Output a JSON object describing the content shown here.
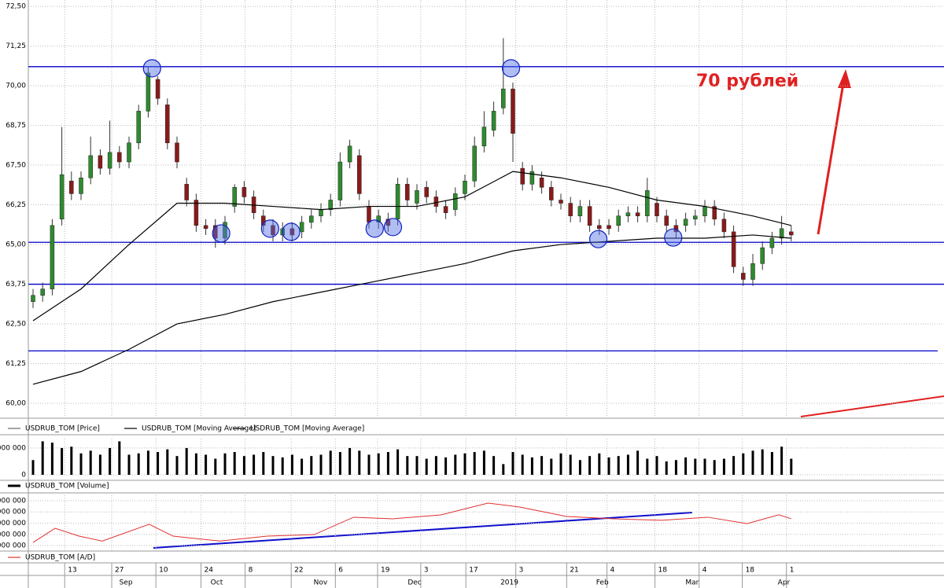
{
  "chart_data": [
    {
      "type": "candlestick",
      "series": [
        {
          "name": "USDRUB_TOM [Price]",
          "color": "#666666",
          "open": [
            63.2,
            63.4,
            63.6,
            65.8,
            67.0,
            66.6,
            67.1,
            67.8,
            67.4,
            67.9,
            67.6,
            68.2,
            69.2,
            70.2,
            69.4,
            68.2,
            66.9,
            66.4,
            65.6,
            65.6,
            65.2,
            66.2,
            66.8,
            66.5,
            65.9,
            65.6,
            65.3,
            65.5,
            65.4,
            65.7,
            65.9,
            66.1,
            66.4,
            67.6,
            67.8,
            66.2,
            65.7,
            65.8,
            65.8,
            66.9,
            66.3,
            66.8,
            66.5,
            66.2,
            66.1,
            66.6,
            67.0,
            68.1,
            68.6,
            69.3,
            69.9,
            67.4,
            66.9,
            67.1,
            66.8,
            66.4,
            66.3,
            65.9,
            66.2,
            65.6,
            65.6,
            65.6,
            65.9,
            66.0,
            65.9,
            66.3,
            65.9,
            65.6,
            65.6,
            65.8,
            65.9,
            66.2,
            65.8,
            65.4,
            64.1,
            63.9,
            64.4,
            64.9,
            65.2,
            65.4
          ],
          "high": [
            63.6,
            63.8,
            65.8,
            68.7,
            67.3,
            67.3,
            68.4,
            68.0,
            68.9,
            68.1,
            68.4,
            69.4,
            70.6,
            70.3,
            69.6,
            68.4,
            67.1,
            66.6,
            65.8,
            65.8,
            65.9,
            66.9,
            67.0,
            66.7,
            66.1,
            65.8,
            65.7,
            65.7,
            65.9,
            66.1,
            66.3,
            66.6,
            67.9,
            68.3,
            68.0,
            66.4,
            66.1,
            66.0,
            67.1,
            67.1,
            66.9,
            67.0,
            66.7,
            66.4,
            66.8,
            67.2,
            68.4,
            69.2,
            69.5,
            71.5,
            70.1,
            67.6,
            67.5,
            67.3,
            67.0,
            66.6,
            66.5,
            66.4,
            66.4,
            65.8,
            65.8,
            66.1,
            66.2,
            66.2,
            67.1,
            66.5,
            66.1,
            65.8,
            66.0,
            66.1,
            66.4,
            66.4,
            66.0,
            65.6,
            64.3,
            64.7,
            65.1,
            65.4,
            65.9,
            65.6
          ],
          "low": [
            63.0,
            63.2,
            63.4,
            65.6,
            66.4,
            66.4,
            66.9,
            67.2,
            67.2,
            67.4,
            67.4,
            68.0,
            69.0,
            69.4,
            68.0,
            67.4,
            66.2,
            65.4,
            65.3,
            64.9,
            65.0,
            66.0,
            66.3,
            65.8,
            65.4,
            65.1,
            65.1,
            65.1,
            65.2,
            65.5,
            65.7,
            65.9,
            66.2,
            67.4,
            66.4,
            65.5,
            65.5,
            65.4,
            65.6,
            66.2,
            66.1,
            66.3,
            66.0,
            65.8,
            65.9,
            66.4,
            66.8,
            67.9,
            68.4,
            69.1,
            67.6,
            66.7,
            66.7,
            66.6,
            66.2,
            66.1,
            65.7,
            65.7,
            65.4,
            65.3,
            65.3,
            65.4,
            65.7,
            65.7,
            65.7,
            65.7,
            65.4,
            65.2,
            65.4,
            65.6,
            65.7,
            65.6,
            65.2,
            64.1,
            63.7,
            63.7,
            64.2,
            64.7,
            65.0,
            65.1
          ],
          "close": [
            63.4,
            63.6,
            65.6,
            67.2,
            66.6,
            67.1,
            67.8,
            67.4,
            67.9,
            67.6,
            68.2,
            69.2,
            70.4,
            69.6,
            68.2,
            67.6,
            66.4,
            65.6,
            65.5,
            65.2,
            65.7,
            66.8,
            66.5,
            66.0,
            65.6,
            65.3,
            65.5,
            65.3,
            65.7,
            65.9,
            66.1,
            66.4,
            67.6,
            68.1,
            66.6,
            65.7,
            65.9,
            65.6,
            66.9,
            66.4,
            66.7,
            66.5,
            66.2,
            66.0,
            66.6,
            67.0,
            68.1,
            68.7,
            69.2,
            69.9,
            68.5,
            66.9,
            67.3,
            66.8,
            66.4,
            66.3,
            65.9,
            66.2,
            65.6,
            65.5,
            65.5,
            65.9,
            66.0,
            65.9,
            66.7,
            65.9,
            65.6,
            65.4,
            65.8,
            65.9,
            66.2,
            65.8,
            65.4,
            64.3,
            63.9,
            64.4,
            64.9,
            65.2,
            65.5,
            65.3
          ]
        },
        {
          "name": "USDRUB_TOM [Moving Average]",
          "color": "#000000",
          "x": [
            0,
            5,
            10,
            15,
            20,
            25,
            30,
            35,
            40,
            45,
            50,
            55,
            60,
            65,
            70,
            75,
            79
          ],
          "values": [
            62.6,
            63.6,
            65.0,
            66.3,
            66.3,
            66.2,
            66.1,
            66.2,
            66.2,
            66.5,
            67.3,
            67.1,
            66.8,
            66.4,
            66.2,
            65.9,
            65.6
          ]
        },
        {
          "name": "USDRUB_TOM [Moving Average]",
          "color": "#000000",
          "x": [
            0,
            5,
            10,
            15,
            20,
            25,
            30,
            35,
            40,
            45,
            50,
            55,
            60,
            65,
            70,
            75,
            79
          ],
          "values": [
            60.6,
            61.0,
            61.7,
            62.5,
            62.8,
            63.2,
            63.5,
            63.8,
            64.1,
            64.4,
            64.8,
            65.0,
            65.1,
            65.2,
            65.2,
            65.3,
            65.2
          ]
        }
      ],
      "up_color": "#2e8b2e",
      "down_color": "#8b1a1a",
      "levels": [
        70.6,
        65.07,
        63.75,
        61.65
      ],
      "level_color": "#0000cc",
      "highlights": [
        {
          "x": 12.4,
          "y": 70.55
        },
        {
          "x": 19.6,
          "y": 65.35
        },
        {
          "x": 24.7,
          "y": 65.5
        },
        {
          "x": 26.9,
          "y": 65.4
        },
        {
          "x": 35.6,
          "y": 65.5
        },
        {
          "x": 37.5,
          "y": 65.55
        },
        {
          "x": 49.8,
          "y": 70.55
        },
        {
          "x": 58.9,
          "y": 65.17
        },
        {
          "x": 66.7,
          "y": 65.22
        }
      ],
      "annotation": "70 рублей",
      "ylim": [
        59.58,
        72.7
      ],
      "yticks": [
        {
          "value": 72.5,
          "label": "72,50"
        },
        {
          "value": 71.25,
          "label": "71,25"
        },
        {
          "value": 70,
          "label": "70,00"
        },
        {
          "value": 68.75,
          "label": "68,75"
        },
        {
          "value": 67.5,
          "label": "67,50"
        },
        {
          "value": 66.25,
          "label": "66,25"
        },
        {
          "value": 65,
          "label": "65,00"
        },
        {
          "value": 63.75,
          "label": "63,75"
        },
        {
          "value": 62.5,
          "label": "62,50"
        },
        {
          "value": 61.25,
          "label": "61,25"
        },
        {
          "value": 60,
          "label": "60,00"
        }
      ],
      "grid": true
    },
    {
      "type": "bar",
      "series": [
        {
          "name": "USDRUB_TOM [Volume]",
          "color": "#000000",
          "values": [
            0.55,
            1.25,
            1.2,
            1.0,
            1.05,
            0.8,
            0.9,
            0.75,
            1.0,
            1.25,
            0.75,
            0.8,
            0.9,
            0.85,
            0.95,
            0.7,
            1.0,
            0.8,
            0.75,
            0.6,
            0.8,
            0.85,
            0.7,
            0.75,
            0.85,
            0.7,
            0.65,
            0.75,
            0.6,
            0.7,
            0.75,
            0.9,
            0.85,
            1.0,
            0.9,
            0.75,
            0.8,
            0.85,
            0.95,
            0.7,
            0.7,
            0.6,
            0.7,
            0.65,
            0.75,
            0.8,
            0.85,
            0.9,
            0.7,
            0.4,
            0.85,
            0.75,
            0.65,
            0.7,
            0.6,
            0.8,
            0.75,
            0.55,
            0.7,
            0.8,
            0.65,
            0.7,
            0.75,
            0.9,
            0.6,
            0.7,
            0.5,
            0.55,
            0.65,
            0.6,
            0.6,
            0.55,
            0.6,
            0.7,
            0.8,
            0.9,
            0.95,
            0.85,
            1.05,
            0.6
          ]
        }
      ],
      "ylim": [
        0,
        1.35
      ],
      "yticks": [
        {
          "value": 1,
          "label": "000 000"
        },
        0
      ]
    },
    {
      "type": "line",
      "series": [
        {
          "name": "USDRUB_TOM [A/D]",
          "color": "#e03030",
          "x": [
            0,
            2.3,
            4.8,
            7.2,
            12.1,
            14.6,
            19.5,
            24.4,
            29.3,
            33.4,
            37.5,
            42.5,
            47.4,
            50.7,
            55.6,
            60.5,
            65.5,
            70.3,
            74.4,
            77.7,
            79
          ],
          "values": [
            1.28,
            2.54,
            1.84,
            1.4,
            2.9,
            1.84,
            1.4,
            1.84,
            1.98,
            3.53,
            3.39,
            3.74,
            4.79,
            4.44,
            3.6,
            3.39,
            3.25,
            3.53,
            2.96,
            3.74,
            3.39
          ]
        }
      ],
      "ylim": [
        0.58,
        5.49
      ],
      "yticks": [
        {
          "value": 5,
          "label": "000 000"
        },
        {
          "value": 4,
          "label": "000 000"
        },
        {
          "value": 3,
          "label": "000 000"
        },
        {
          "value": 2,
          "label": "000 000"
        },
        {
          "value": 1,
          "label": "000 000"
        }
      ],
      "xticks": [
        {
          "value": 3.3,
          "label": "13"
        },
        {
          "value": 8.2,
          "label": "27"
        },
        {
          "value": 12.8,
          "label": "10"
        },
        {
          "value": 17.5,
          "label": "24"
        },
        {
          "value": 22.1,
          "label": "8"
        },
        {
          "value": 26.9,
          "label": "22"
        },
        {
          "value": 31.5,
          "label": "6"
        },
        {
          "value": 35.9,
          "label": "19"
        },
        {
          "value": 40.4,
          "label": "3"
        },
        {
          "value": 45.1,
          "label": "17"
        },
        {
          "value": 50.3,
          "label": "3"
        },
        {
          "value": 55.6,
          "label": "21"
        },
        {
          "value": 59.8,
          "label": "4"
        },
        {
          "value": 64.8,
          "label": "18"
        },
        {
          "value": 69.4,
          "label": "4"
        },
        {
          "value": 73.9,
          "label": "18"
        },
        {
          "value": 78.5,
          "label": "1"
        }
      ],
      "month_ticks": [
        {
          "value": 10.7,
          "label": "Sep"
        },
        {
          "value": 20.1,
          "label": "Oct"
        },
        {
          "value": 31,
          "label": "Nov"
        },
        {
          "value": 40.8,
          "label": "Dec"
        },
        {
          "value": 50.9,
          "label": "2019"
        },
        {
          "value": 60.3,
          "label": "Feb"
        },
        {
          "value": 69.7,
          "label": "Mar"
        },
        {
          "value": 79.2,
          "label": "Apr"
        }
      ]
    }
  ]
}
